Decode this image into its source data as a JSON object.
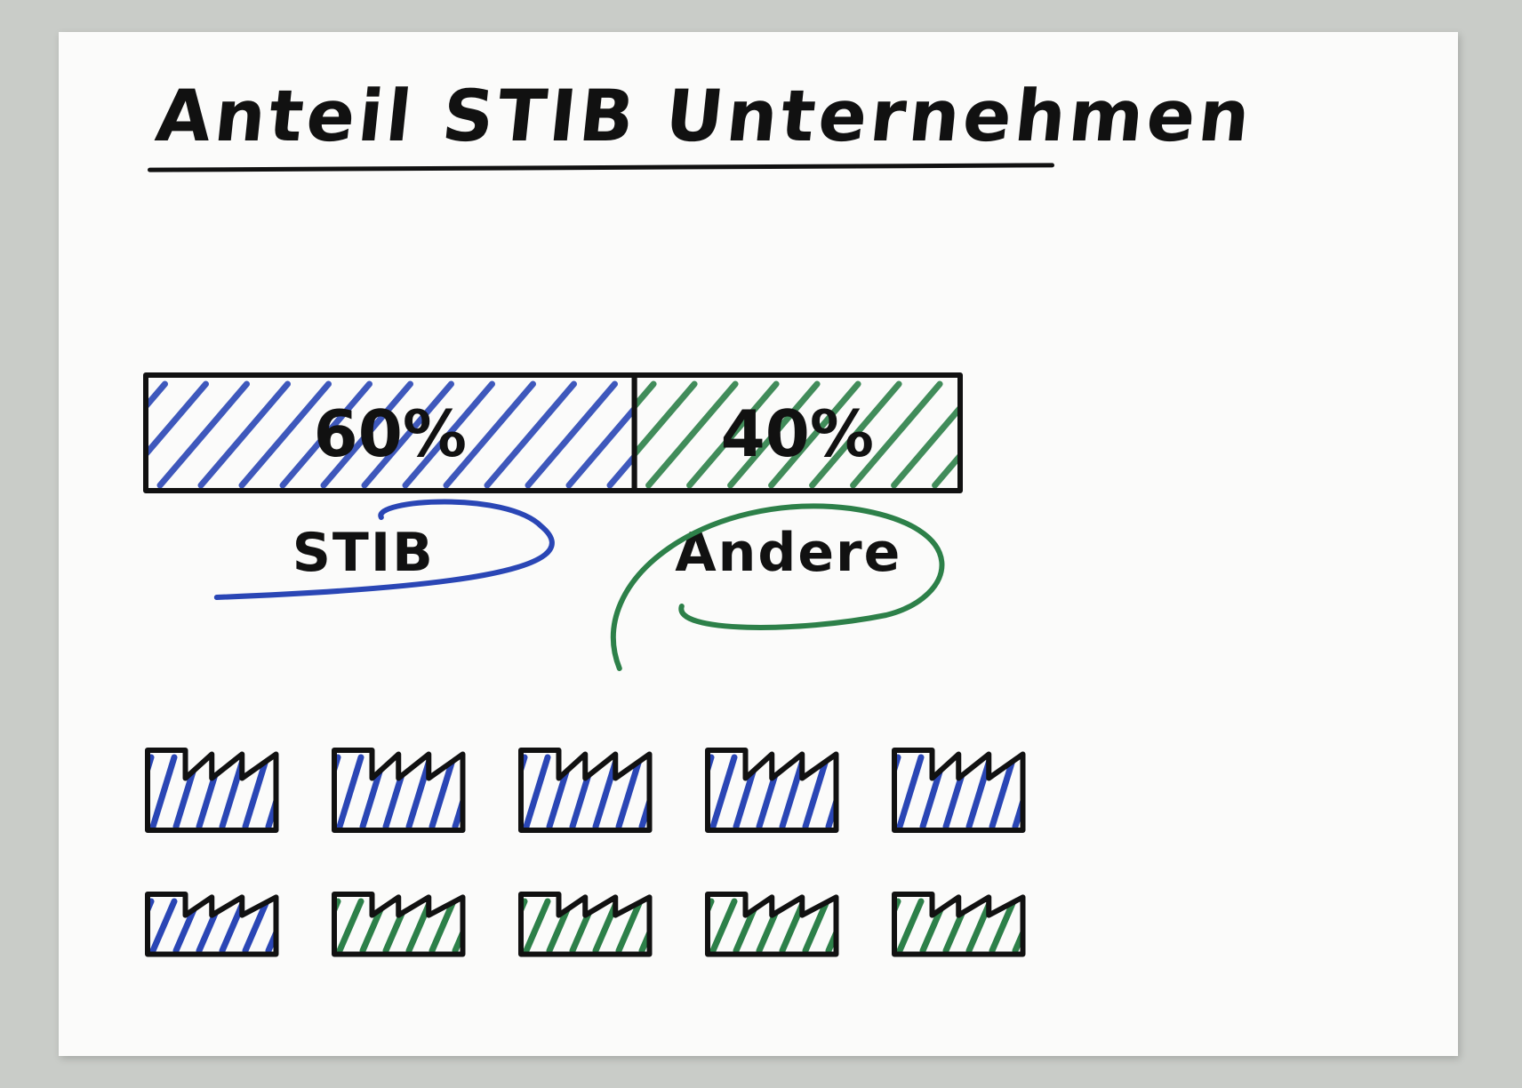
{
  "title": "Anteil STIB Unternehmen",
  "colors": {
    "ink": "#111111",
    "stib": "#2a46b5",
    "andere": "#2d8049",
    "paper": "#fbfbfa",
    "background": "#c9ccc8"
  },
  "chart_data": {
    "type": "bar",
    "orientation": "horizontal-stacked",
    "title": "Anteil STIB Unternehmen",
    "categories": [
      "STIB",
      "Andere"
    ],
    "series": [
      {
        "name": "STIB",
        "value": 60,
        "label": "60%",
        "color": "#2a46b5"
      },
      {
        "name": "Andere",
        "value": 40,
        "label": "40%",
        "color": "#2d8049"
      }
    ],
    "unit": "%",
    "total": 100
  },
  "factories": {
    "rows": [
      [
        "stib",
        "stib",
        "stib",
        "stib",
        "stib"
      ],
      [
        "stib",
        "andere",
        "andere",
        "andere",
        "andere"
      ]
    ]
  }
}
